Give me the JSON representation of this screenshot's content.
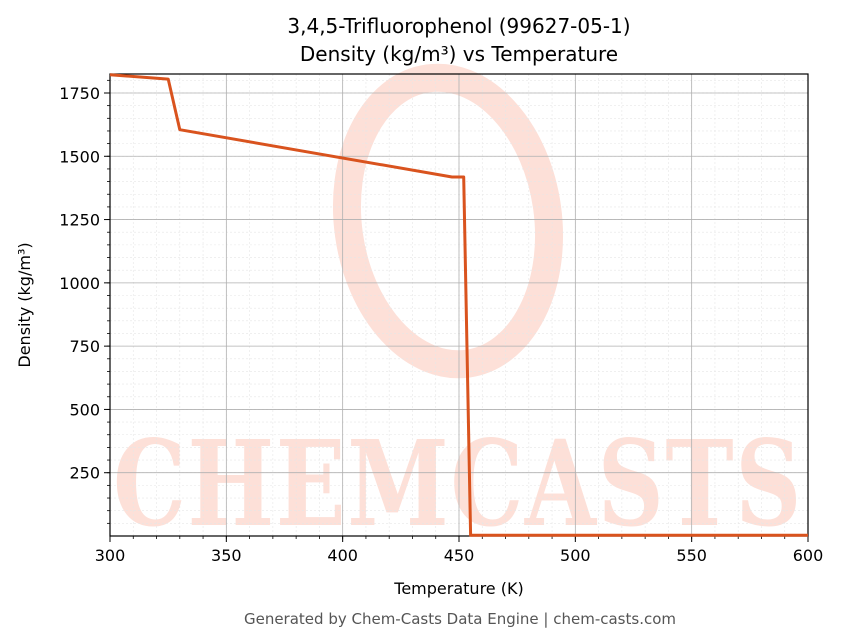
{
  "chart_data": {
    "type": "line",
    "title_line1": "3,4,5-Trifluorophenol (99627-05-1)",
    "title_line2": "Density (kg/m³) vs Temperature",
    "xlabel": "Temperature (K)",
    "ylabel": "Density (kg/m³)",
    "xlim": [
      300,
      600
    ],
    "ylim": [
      0,
      1825
    ],
    "x_ticks": [
      300,
      350,
      400,
      450,
      500,
      550,
      600
    ],
    "y_ticks": [
      250,
      500,
      750,
      1000,
      1250,
      1500,
      1750
    ],
    "grid": true,
    "series": [
      {
        "color": "#d9531e",
        "x": [
          300,
          325,
          330,
          447,
          452,
          455,
          500,
          550,
          600
        ],
        "y": [
          1822,
          1805,
          1605,
          1418,
          1418,
          3,
          3,
          3,
          3
        ]
      }
    ]
  },
  "watermark": {
    "text": "CHEMCASTS"
  },
  "footer": "Generated by Chem-Casts Data Engine | chem-casts.com"
}
